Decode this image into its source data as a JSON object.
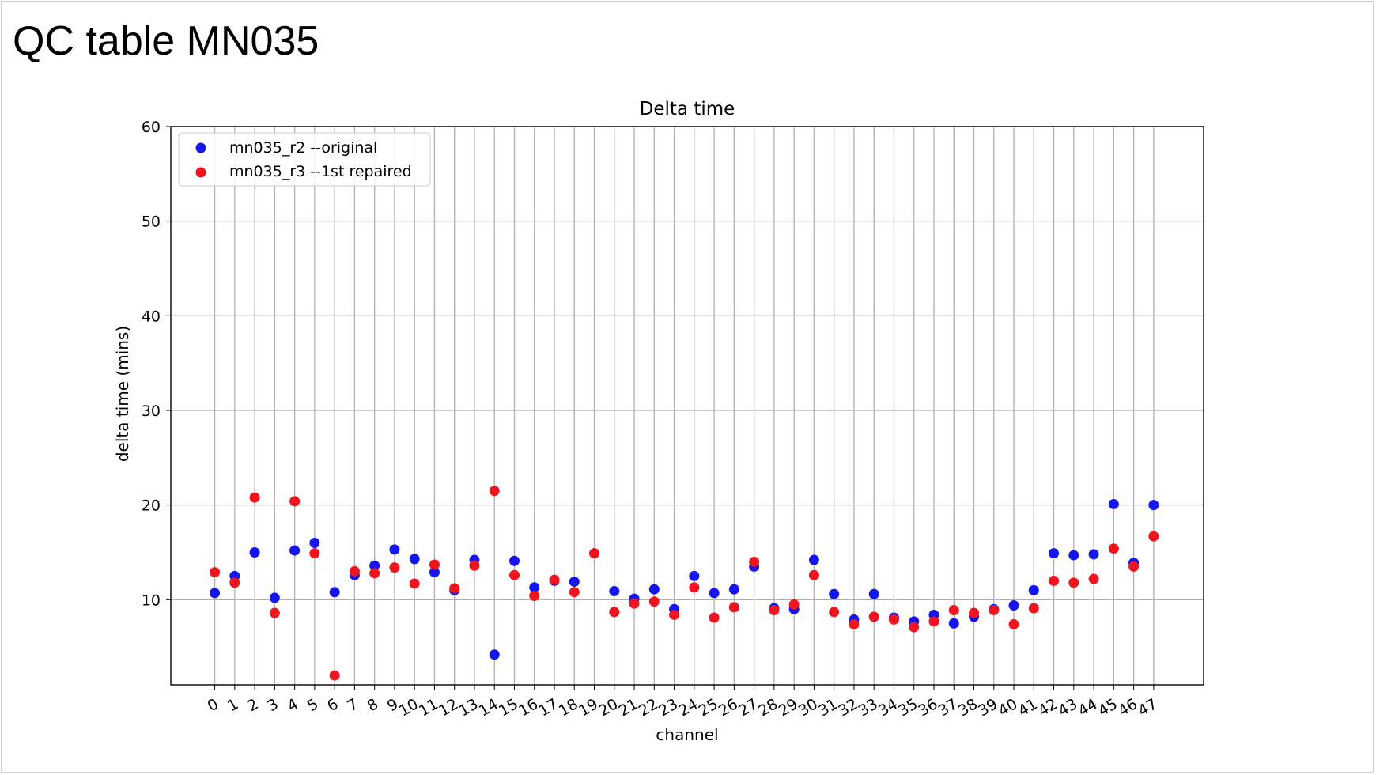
{
  "slide": {
    "title": "QC table MN035"
  },
  "chart_data": {
    "type": "scatter",
    "title": "Delta time",
    "xlabel": "channel",
    "ylabel": "delta time (mins)",
    "xlim": [
      -2.2,
      49.5
    ],
    "ylim": [
      1,
      60
    ],
    "x_ticks": [
      0,
      1,
      2,
      3,
      4,
      5,
      6,
      7,
      8,
      9,
      10,
      11,
      12,
      13,
      14,
      15,
      16,
      17,
      18,
      19,
      20,
      21,
      22,
      23,
      24,
      25,
      26,
      27,
      28,
      29,
      30,
      31,
      32,
      33,
      34,
      35,
      36,
      37,
      38,
      39,
      40,
      41,
      42,
      43,
      44,
      45,
      46,
      47
    ],
    "y_ticks": [
      10,
      20,
      30,
      40,
      50,
      60
    ],
    "grid": true,
    "legend_position": "top-left",
    "x": [
      0,
      1,
      2,
      3,
      4,
      5,
      6,
      7,
      8,
      9,
      10,
      11,
      12,
      13,
      14,
      15,
      16,
      17,
      18,
      19,
      20,
      21,
      22,
      23,
      24,
      25,
      26,
      27,
      28,
      29,
      30,
      31,
      32,
      33,
      34,
      35,
      36,
      37,
      38,
      39,
      40,
      41,
      42,
      43,
      44,
      45,
      46,
      47
    ],
    "series": [
      {
        "name": "mn035_r2 --original",
        "color": "#1515f0",
        "values": [
          10.7,
          12.5,
          15.0,
          10.2,
          15.2,
          16.0,
          10.8,
          12.6,
          13.6,
          15.3,
          14.3,
          12.9,
          11.0,
          14.2,
          4.2,
          14.1,
          11.3,
          12.0,
          11.9,
          14.9,
          10.9,
          10.1,
          11.1,
          9.0,
          12.5,
          10.7,
          11.1,
          13.5,
          9.1,
          9.0,
          14.2,
          10.6,
          7.9,
          10.6,
          8.1,
          7.7,
          8.4,
          7.5,
          8.2,
          9.0,
          9.4,
          11.0,
          14.9,
          14.7,
          14.8,
          20.1,
          13.9,
          20.0
        ]
      },
      {
        "name": "mn035_r3 --1st repaired",
        "color": "#f0141e",
        "values": [
          12.9,
          11.8,
          20.8,
          8.6,
          20.4,
          14.9,
          2.0,
          13.0,
          12.8,
          13.4,
          11.7,
          13.7,
          11.2,
          13.6,
          21.5,
          12.6,
          10.4,
          12.1,
          10.8,
          14.9,
          8.7,
          9.6,
          9.8,
          8.4,
          11.3,
          8.1,
          9.2,
          14.0,
          8.9,
          9.5,
          12.6,
          8.7,
          7.4,
          8.2,
          7.9,
          7.1,
          7.7,
          8.9,
          8.6,
          8.9,
          7.4,
          9.1,
          12.0,
          11.8,
          12.2,
          15.4,
          13.5,
          16.7
        ]
      }
    ]
  }
}
